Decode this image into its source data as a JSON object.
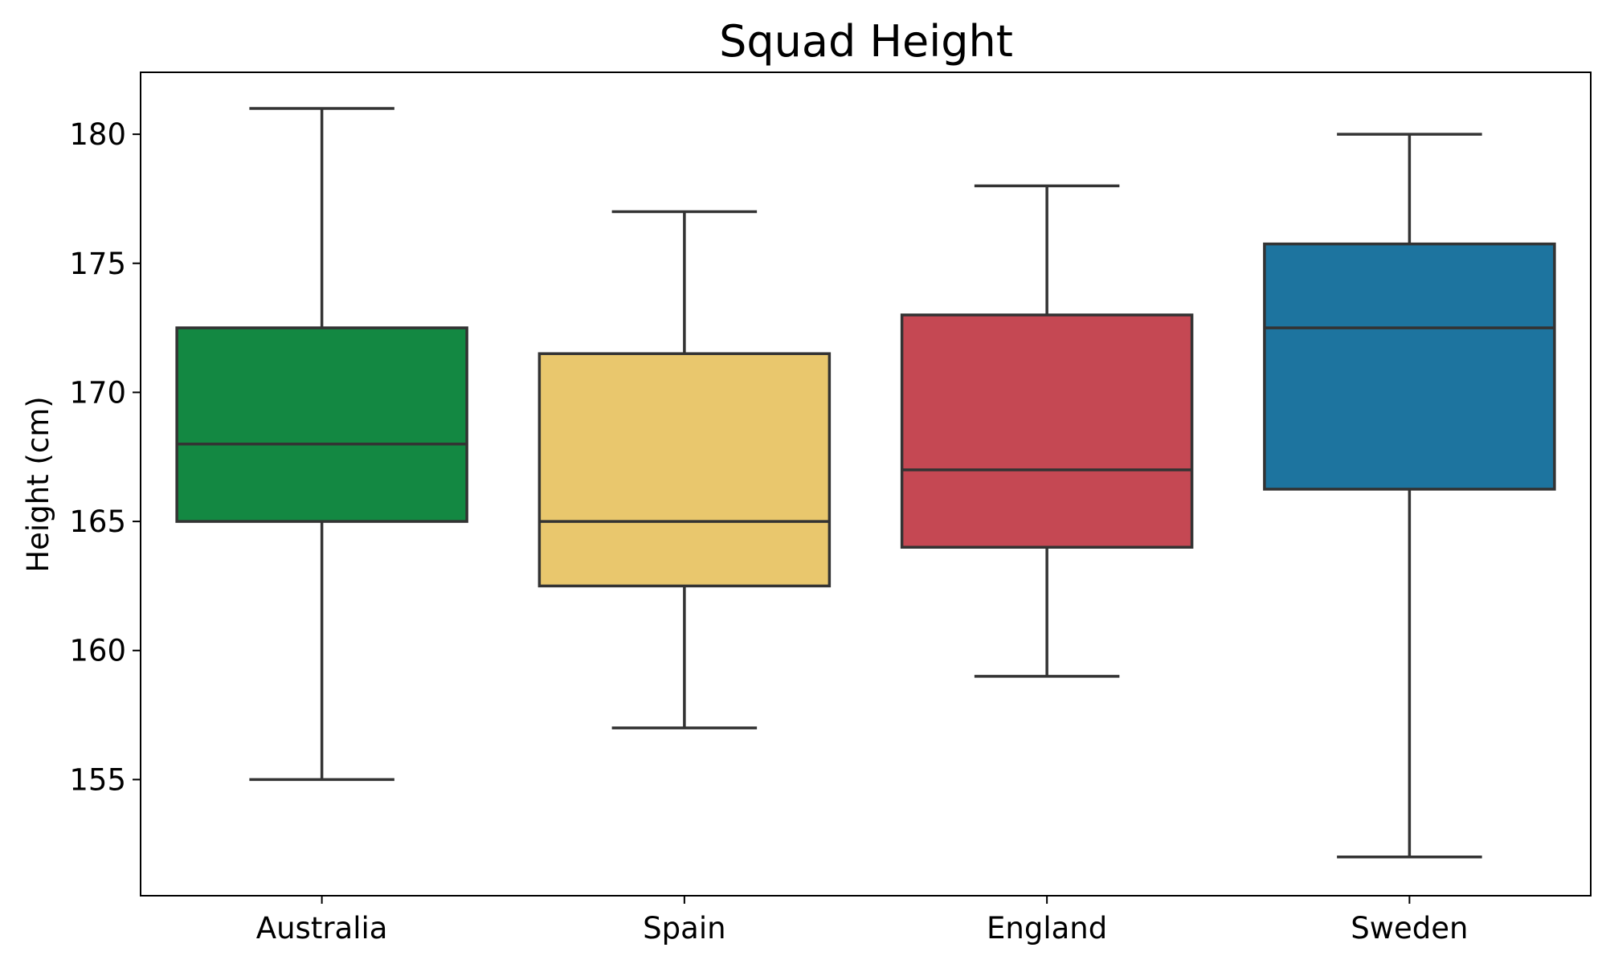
{
  "chart_data": {
    "type": "box",
    "title": "Squad Height",
    "xlabel": "",
    "ylabel": "Height (cm)",
    "ylim": [
      150.5,
      182.4
    ],
    "yticks": [
      155,
      160,
      165,
      170,
      175,
      180
    ],
    "grid": false,
    "categories": [
      "Australia",
      "Spain",
      "England",
      "Sweden"
    ],
    "boxes": [
      {
        "category": "Australia",
        "whisker_low": 155,
        "q1": 165,
        "median": 168,
        "q3": 172.5,
        "whisker_high": 181,
        "color": "#138842"
      },
      {
        "category": "Spain",
        "whisker_low": 157,
        "q1": 162.5,
        "median": 165,
        "q3": 171.5,
        "whisker_high": 177,
        "color": "#e9c76d"
      },
      {
        "category": "England",
        "whisker_low": 159,
        "q1": 164,
        "median": 167,
        "q3": 173,
        "whisker_high": 178,
        "color": "#c54853"
      },
      {
        "category": "Sweden",
        "whisker_low": 152,
        "q1": 166.25,
        "median": 172.5,
        "q3": 175.75,
        "whisker_high": 180,
        "color": "#1d749f"
      }
    ],
    "line_color": "#333333"
  }
}
